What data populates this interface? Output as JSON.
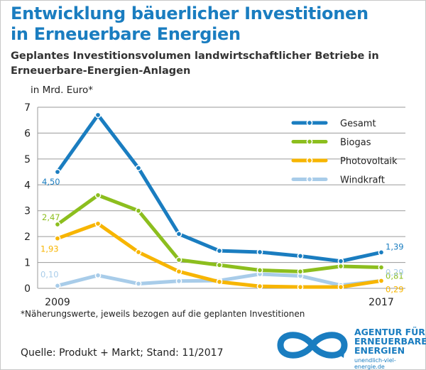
{
  "header": {
    "title_line1": "Entwicklung bäuerlicher Investitionen",
    "title_line2": "in Erneuerbare Energien",
    "subtitle_line1": "Geplantes Investitionsvolumen landwirtschaftlicher Betriebe in",
    "subtitle_line2": "Erneuerbare-Energien-Anlagen"
  },
  "footnote": "*Näherungswerte, jeweils bezogen auf die geplanten Investitionen",
  "source": "Quelle: Produkt + Markt; Stand: 11/2017",
  "logo": {
    "line1": "AGENTUR FÜR",
    "line2": "ERNEUERBARE",
    "line3": "ENERGIEN",
    "url": "unendlich-viel-energie.de"
  },
  "chart_data": {
    "type": "line",
    "ylabel": "in Mrd. Euro*",
    "ylim": [
      0,
      7
    ],
    "yticks": [
      "0",
      "1",
      "2",
      "3",
      "4",
      "5",
      "6",
      "7"
    ],
    "x_tick_labels": [
      "2009",
      "2017"
    ],
    "x": [
      2009,
      2010,
      2011,
      2012,
      2013,
      2014,
      2015,
      2016,
      2017
    ],
    "grid": true,
    "legend_position": "top-right",
    "series": [
      {
        "name": "Gesamt",
        "color": "#1a7dc0",
        "values": [
          4.5,
          6.7,
          4.65,
          2.1,
          1.45,
          1.4,
          1.25,
          1.05,
          1.39
        ],
        "first_label": "4,50",
        "last_label": "1,39"
      },
      {
        "name": "Biogas",
        "color": "#8cbe1e",
        "values": [
          2.47,
          3.6,
          3.0,
          1.1,
          0.9,
          0.7,
          0.65,
          0.85,
          0.81
        ],
        "first_label": "2,47",
        "last_label": "0,81"
      },
      {
        "name": "Photovoltaik",
        "color": "#f7b500",
        "values": [
          1.93,
          2.5,
          1.4,
          0.65,
          0.25,
          0.08,
          0.05,
          0.05,
          0.29
        ],
        "first_label": "1,93",
        "last_label": "0,29"
      },
      {
        "name": "Windkraft",
        "color": "#a8cce9",
        "values": [
          0.1,
          0.5,
          0.18,
          0.28,
          0.3,
          0.55,
          0.48,
          0.12,
          0.29
        ],
        "first_label": "0,10",
        "last_label": "0,29"
      }
    ]
  }
}
